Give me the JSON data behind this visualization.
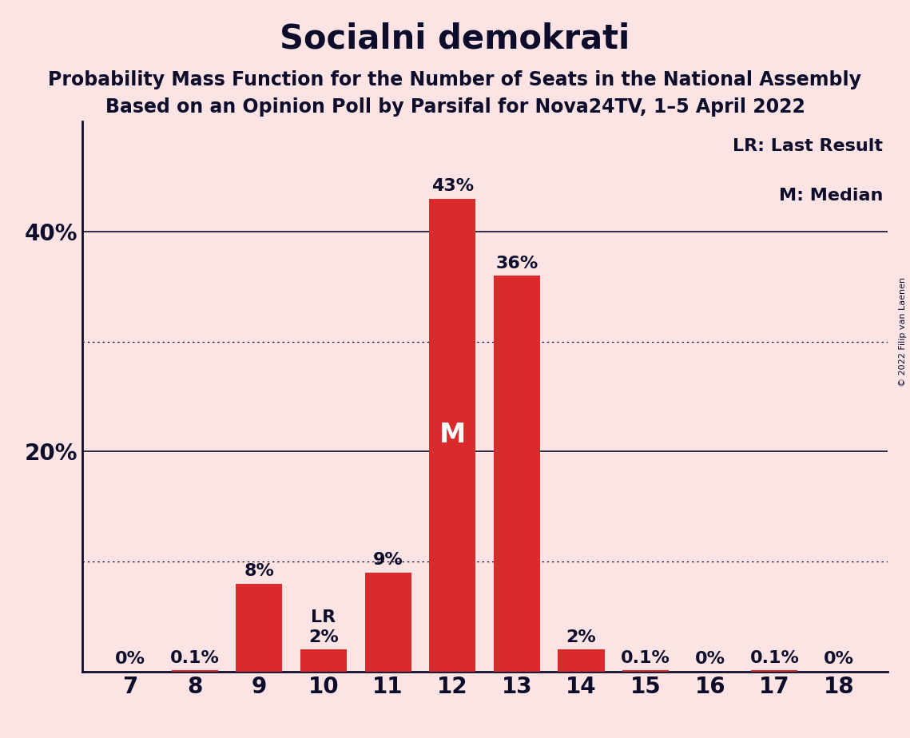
{
  "title": "Socialni demokrati",
  "subtitle1": "Probability Mass Function for the Number of Seats in the National Assembly",
  "subtitle2": "Based on an Opinion Poll by Parsifal for Nova24TV, 1–5 April 2022",
  "copyright": "© 2022 Filip van Laenen",
  "categories": [
    7,
    8,
    9,
    10,
    11,
    12,
    13,
    14,
    15,
    16,
    17,
    18
  ],
  "values": [
    0.0,
    0.1,
    8.0,
    2.0,
    9.0,
    43.0,
    36.0,
    2.0,
    0.1,
    0.0,
    0.1,
    0.0
  ],
  "labels": [
    "0%",
    "0.1%",
    "8%",
    "2%",
    "9%",
    "43%",
    "36%",
    "2%",
    "0.1%",
    "0%",
    "0.1%",
    "0%"
  ],
  "bar_color": "#d92b2b",
  "background_color": "#fce4e4",
  "text_color": "#0d0d2b",
  "median_seat": 12,
  "lr_seat": 10,
  "legend_lr": "LR: Last Result",
  "legend_m": "M: Median",
  "ylim": [
    0,
    50
  ],
  "solid_lines_labeled": [
    20,
    40
  ],
  "dotted_lines": [
    10,
    30
  ],
  "ytick_positions": [
    20,
    40
  ],
  "ytick_labels": [
    "20%",
    "40%"
  ],
  "title_fontsize": 30,
  "subtitle_fontsize": 17,
  "bar_label_fontsize": 16,
  "axis_fontsize": 20,
  "legend_fontsize": 16
}
